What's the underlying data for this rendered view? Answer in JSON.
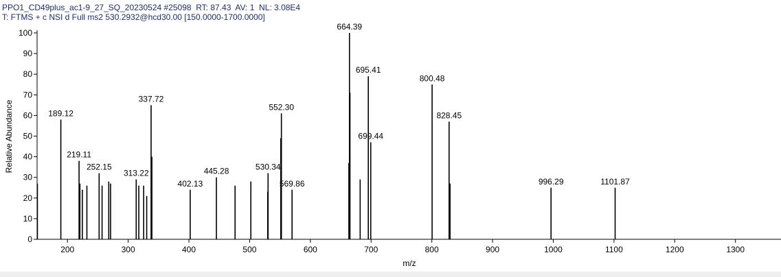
{
  "chart_data": {
    "type": "spectrum",
    "header": "PPO1_CD49plus_ac1-9_27_SQ_20230524 #25098  RT: 87.43  AV: 1  NL: 3.08E4",
    "subheader": "T: FTMS + c NSI d Full ms2 530.2932@hcd30.00 [150.0000-1700.0000]",
    "xlabel": "m/z",
    "ylabel": "Relative Abundance",
    "color": "#000000",
    "x": [
      150.5,
      189.12,
      219.11,
      220.5,
      224.5,
      232.0,
      252.15,
      257.0,
      268.0,
      271.0,
      313.22,
      317.5,
      325.5,
      330.5,
      337.72,
      339.0,
      402.13,
      445.28,
      476.0,
      502.0,
      529.8,
      530.34,
      551.3,
      552.3,
      569.86,
      663.4,
      664.39,
      665.2,
      682.0,
      695.41,
      699.44,
      800.48,
      828.45,
      830.0,
      996.29,
      1101.87
    ],
    "values": [
      27,
      58,
      38,
      27,
      24,
      26,
      32,
      26,
      28,
      27,
      29,
      26,
      26,
      21,
      65,
      40,
      24,
      30,
      26,
      28,
      23,
      32,
      49,
      61,
      24,
      37,
      100,
      71,
      29,
      79,
      47,
      75,
      57,
      27,
      25,
      25
    ],
    "value_labels": [
      null,
      "189.12",
      "219.11",
      null,
      null,
      null,
      "252.15",
      null,
      null,
      null,
      "313.22",
      null,
      null,
      null,
      "337.72",
      null,
      "402.13",
      "445.28",
      null,
      null,
      null,
      "530.34",
      null,
      "552.30",
      "569.86",
      null,
      "664.39",
      null,
      null,
      "695.41",
      "699.44",
      "800.48",
      "828.45",
      null,
      "996.29",
      "1101.87"
    ],
    "xlim": [
      150,
      1375
    ],
    "ylim": [
      0,
      100
    ],
    "xticks": [
      200,
      300,
      400,
      500,
      600,
      700,
      800,
      900,
      1000,
      1100,
      1200,
      1300
    ],
    "yticks": [
      0,
      10,
      20,
      30,
      40,
      50,
      60,
      70,
      80,
      90,
      100
    ]
  }
}
